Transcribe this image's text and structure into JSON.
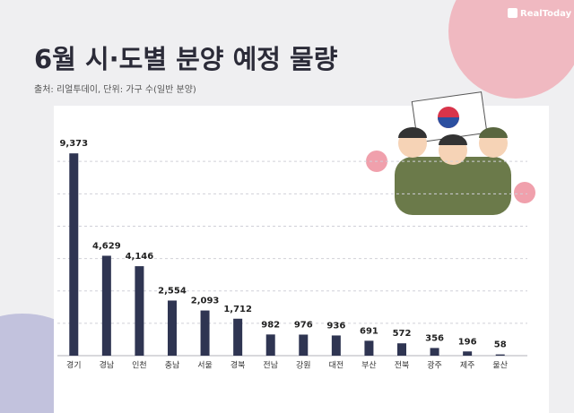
{
  "brand": "RealToday",
  "chart_data": {
    "type": "bar",
    "title": "6월 시·도별 분양 예정 물량",
    "subtitle": "출처: 리얼투데이, 단위: 가구 수(일반 분양)",
    "categories": [
      "경기",
      "경남",
      "인천",
      "충남",
      "서울",
      "경북",
      "전남",
      "강원",
      "대전",
      "부산",
      "전북",
      "광주",
      "제주",
      "울산"
    ],
    "values": [
      9373,
      4629,
      4146,
      2554,
      2093,
      1712,
      982,
      976,
      936,
      691,
      572,
      356,
      196,
      58
    ],
    "value_labels": [
      "9,373",
      "4,629",
      "4,146",
      "2,554",
      "2,093",
      "1,712",
      "982",
      "976",
      "936",
      "691",
      "572",
      "356",
      "196",
      "58"
    ],
    "color": "#2f3552",
    "ylim": [
      0,
      11000
    ],
    "yticks": [
      1500,
      3000,
      4500,
      6000,
      7500,
      9000
    ],
    "grid": true
  }
}
